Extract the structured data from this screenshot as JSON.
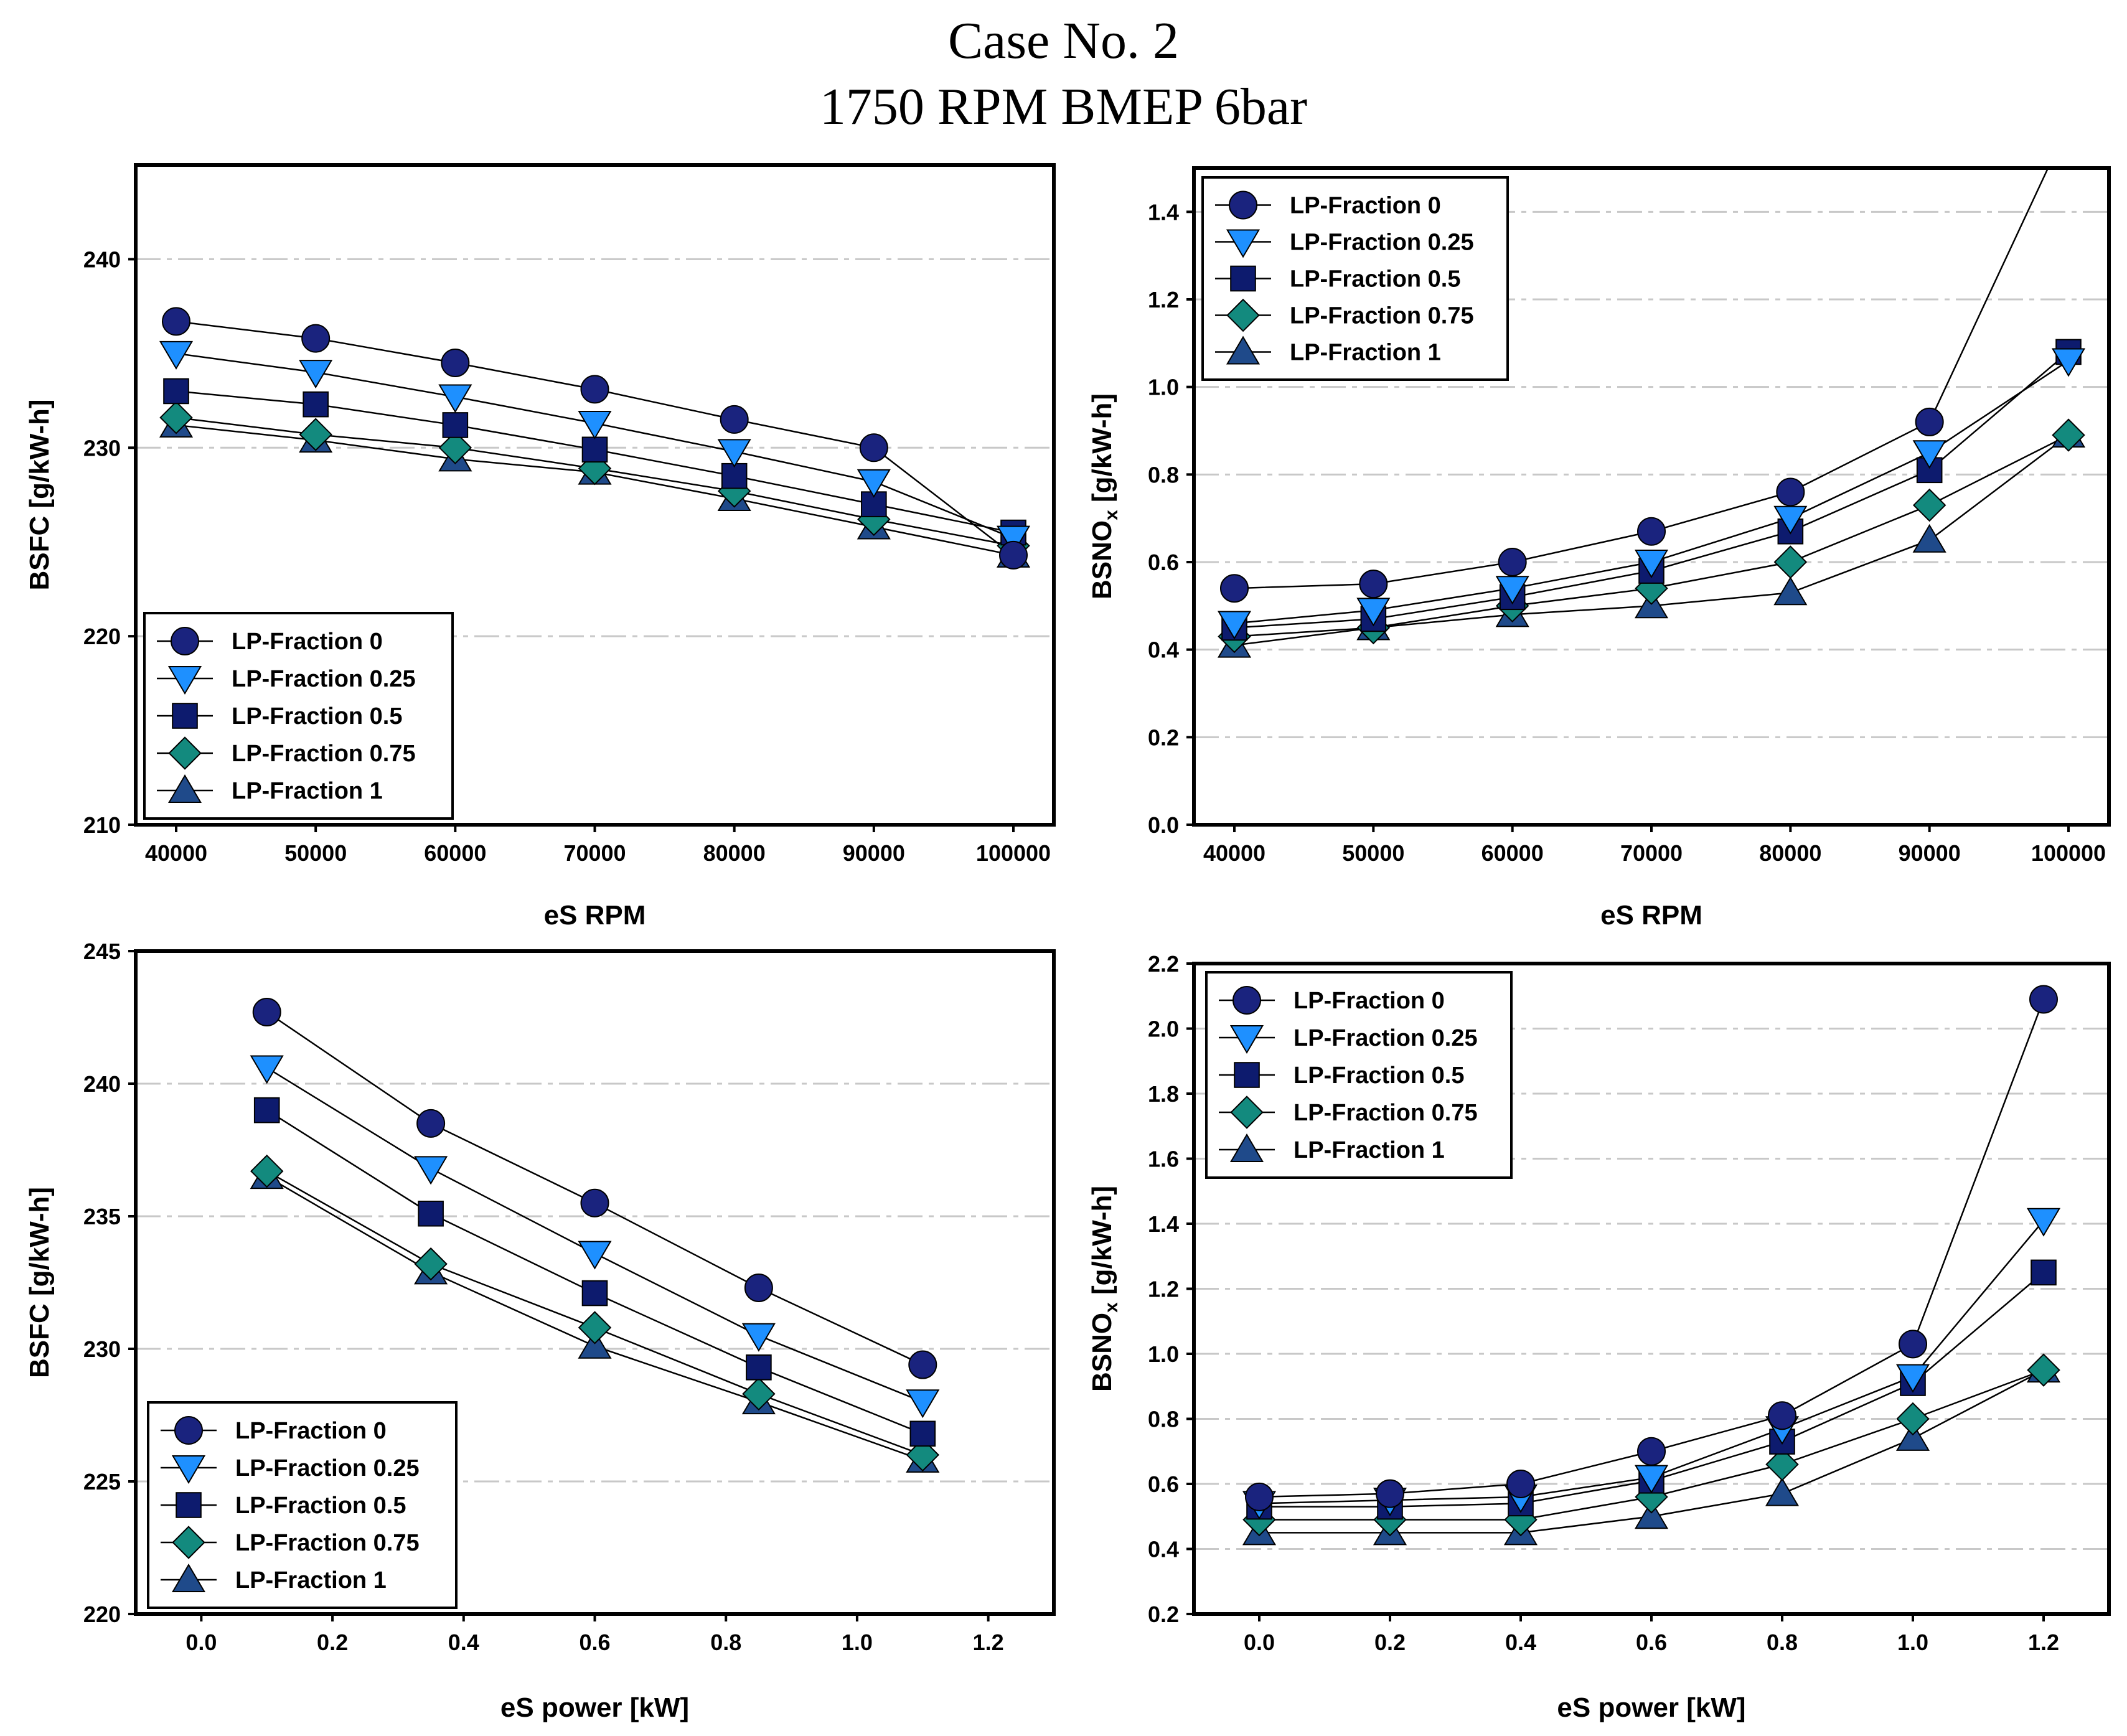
{
  "figure": {
    "title_line1": "Case No. 2",
    "title_line2": "1750 RPM BMEP 6bar"
  },
  "styles": {
    "series_colors": [
      "#1a237e",
      "#1e90ff",
      "#0d1b6e",
      "#138a7e",
      "#1f4a8a"
    ],
    "markers": [
      "circle",
      "triangle-down",
      "square",
      "diamond",
      "triangle-up"
    ]
  },
  "chart_data": [
    {
      "type": "line",
      "panel": "top-left",
      "xlabel": "eS RPM",
      "ylabel": "BSFC [g/kW-h]",
      "x": [
        40000,
        50000,
        60000,
        70000,
        80000,
        90000,
        100000
      ],
      "xlim": [
        40000,
        100000
      ],
      "ylim": [
        210,
        245
      ],
      "xticks": [
        "40000",
        "50000",
        "60000",
        "70000",
        "80000",
        "90000",
        "100000"
      ],
      "yticks": [
        210,
        220,
        230,
        240
      ],
      "ytick_labels": [
        "210",
        "220",
        "230",
        "240"
      ],
      "legend_position": "bottom-left",
      "series": [
        {
          "name": "LP-Fraction 0",
          "values": [
            236.7,
            235.8,
            234.5,
            233.1,
            231.5,
            230.0,
            224.3
          ]
        },
        {
          "name": "LP-Fraction 0.25",
          "values": [
            235.0,
            234.0,
            232.7,
            231.3,
            229.8,
            228.2,
            225.2
          ]
        },
        {
          "name": "LP-Fraction 0.5",
          "values": [
            233.0,
            232.3,
            231.2,
            229.9,
            228.5,
            227.0,
            225.5
          ]
        },
        {
          "name": "LP-Fraction 0.75",
          "values": [
            231.6,
            230.7,
            230.0,
            228.9,
            227.7,
            226.2,
            224.8
          ]
        },
        {
          "name": "LP-Fraction 1",
          "values": [
            231.2,
            230.4,
            229.4,
            228.7,
            227.3,
            225.8,
            224.3
          ]
        }
      ]
    },
    {
      "type": "line",
      "panel": "top-right",
      "xlabel": "eS RPM",
      "ylabel": "BSNO",
      "ylabel_sub": "x",
      "ylabel_unit": " [g/kW-h]",
      "x": [
        40000,
        50000,
        60000,
        70000,
        80000,
        90000,
        100000
      ],
      "xlim": [
        40000,
        100000
      ],
      "ylim": [
        0,
        1.5
      ],
      "xticks": [
        "40000",
        "50000",
        "60000",
        "70000",
        "80000",
        "90000",
        "100000"
      ],
      "yticks": [
        0,
        0.2,
        0.4,
        0.6,
        0.8,
        1.0,
        1.2,
        1.4
      ],
      "ytick_labels": [
        "0.0",
        "0.2",
        "0.4",
        "0.6",
        "0.8",
        "1.0",
        "1.2",
        "1.4"
      ],
      "legend_position": "top-left",
      "series": [
        {
          "name": "LP-Fraction 0",
          "values": [
            0.54,
            0.55,
            0.6,
            0.67,
            0.76,
            0.92,
            1.6
          ]
        },
        {
          "name": "LP-Fraction 0.25",
          "values": [
            0.46,
            0.49,
            0.54,
            0.6,
            0.7,
            0.85,
            1.06
          ]
        },
        {
          "name": "LP-Fraction 0.5",
          "values": [
            0.45,
            0.47,
            0.52,
            0.58,
            0.67,
            0.81,
            1.08
          ]
        },
        {
          "name": "LP-Fraction 0.75",
          "values": [
            0.43,
            0.45,
            0.5,
            0.54,
            0.6,
            0.73,
            0.89
          ]
        },
        {
          "name": "LP-Fraction 1",
          "values": [
            0.41,
            0.45,
            0.48,
            0.5,
            0.53,
            0.65,
            0.89
          ]
        }
      ]
    },
    {
      "type": "line",
      "panel": "bottom-left",
      "xlabel": "eS power [kW]",
      "ylabel": "BSFC [g/kW-h]",
      "x": [
        0.1,
        0.35,
        0.6,
        0.85,
        1.1
      ],
      "xlim": [
        -0.1,
        1.3
      ],
      "ylim": [
        220,
        245
      ],
      "xticks": [
        0,
        0.2,
        0.4,
        0.6,
        0.8,
        1.0,
        1.2
      ],
      "xtick_labels": [
        "0.0",
        "0.2",
        "0.4",
        "0.6",
        "0.8",
        "1.0",
        "1.2"
      ],
      "yticks": [
        220,
        225,
        230,
        235,
        240,
        245
      ],
      "ytick_labels": [
        "220",
        "225",
        "230",
        "235",
        "240",
        "245"
      ],
      "legend_position": "bottom-left",
      "series": [
        {
          "name": "LP-Fraction 0",
          "values": [
            242.7,
            238.5,
            235.5,
            232.3,
            229.4
          ]
        },
        {
          "name": "LP-Fraction 0.25",
          "values": [
            240.6,
            236.8,
            233.6,
            230.5,
            228.0
          ]
        },
        {
          "name": "LP-Fraction 0.5",
          "values": [
            239.0,
            235.1,
            232.1,
            229.3,
            226.8
          ]
        },
        {
          "name": "LP-Fraction 0.75",
          "values": [
            236.7,
            233.2,
            230.8,
            228.3,
            226.0
          ]
        },
        {
          "name": "LP-Fraction 1",
          "values": [
            236.5,
            232.9,
            230.1,
            228.0,
            225.8
          ]
        }
      ]
    },
    {
      "type": "line",
      "panel": "bottom-right",
      "xlabel": "eS power [kW]",
      "ylabel": "BSNO",
      "ylabel_sub": "x",
      "ylabel_unit": " [g/kW-h]",
      "x": [
        0.0,
        0.2,
        0.4,
        0.6,
        0.8,
        1.0,
        1.2
      ],
      "xlim": [
        -0.1,
        1.3
      ],
      "ylim": [
        0.2,
        2.2
      ],
      "xticks": [
        0,
        0.2,
        0.4,
        0.6,
        0.8,
        1.0,
        1.2
      ],
      "xtick_labels": [
        "0.0",
        "0.2",
        "0.4",
        "0.6",
        "0.8",
        "1.0",
        "1.2"
      ],
      "yticks": [
        0.2,
        0.4,
        0.6,
        0.8,
        1.0,
        1.2,
        1.4,
        1.6,
        1.8,
        2.0,
        2.2
      ],
      "ytick_labels": [
        "0.2",
        "0.4",
        "0.6",
        "0.8",
        "1.0",
        "1.2",
        "1.4",
        "1.6",
        "1.8",
        "2.0",
        "2.2"
      ],
      "legend_position": "top-left",
      "series": [
        {
          "name": "LP-Fraction 0",
          "values": [
            0.56,
            0.57,
            0.6,
            0.7,
            0.81,
            1.03,
            2.09
          ]
        },
        {
          "name": "LP-Fraction 0.25",
          "values": [
            0.54,
            0.55,
            0.56,
            0.62,
            0.77,
            0.93,
            1.41
          ]
        },
        {
          "name": "LP-Fraction 0.5",
          "values": [
            0.53,
            0.53,
            0.54,
            0.61,
            0.73,
            0.91,
            1.25
          ]
        },
        {
          "name": "LP-Fraction 0.75",
          "values": [
            0.49,
            0.49,
            0.49,
            0.56,
            0.66,
            0.8,
            0.95
          ]
        },
        {
          "name": "LP-Fraction 1",
          "values": [
            0.45,
            0.45,
            0.45,
            0.5,
            0.57,
            0.74,
            0.95
          ]
        }
      ]
    }
  ]
}
